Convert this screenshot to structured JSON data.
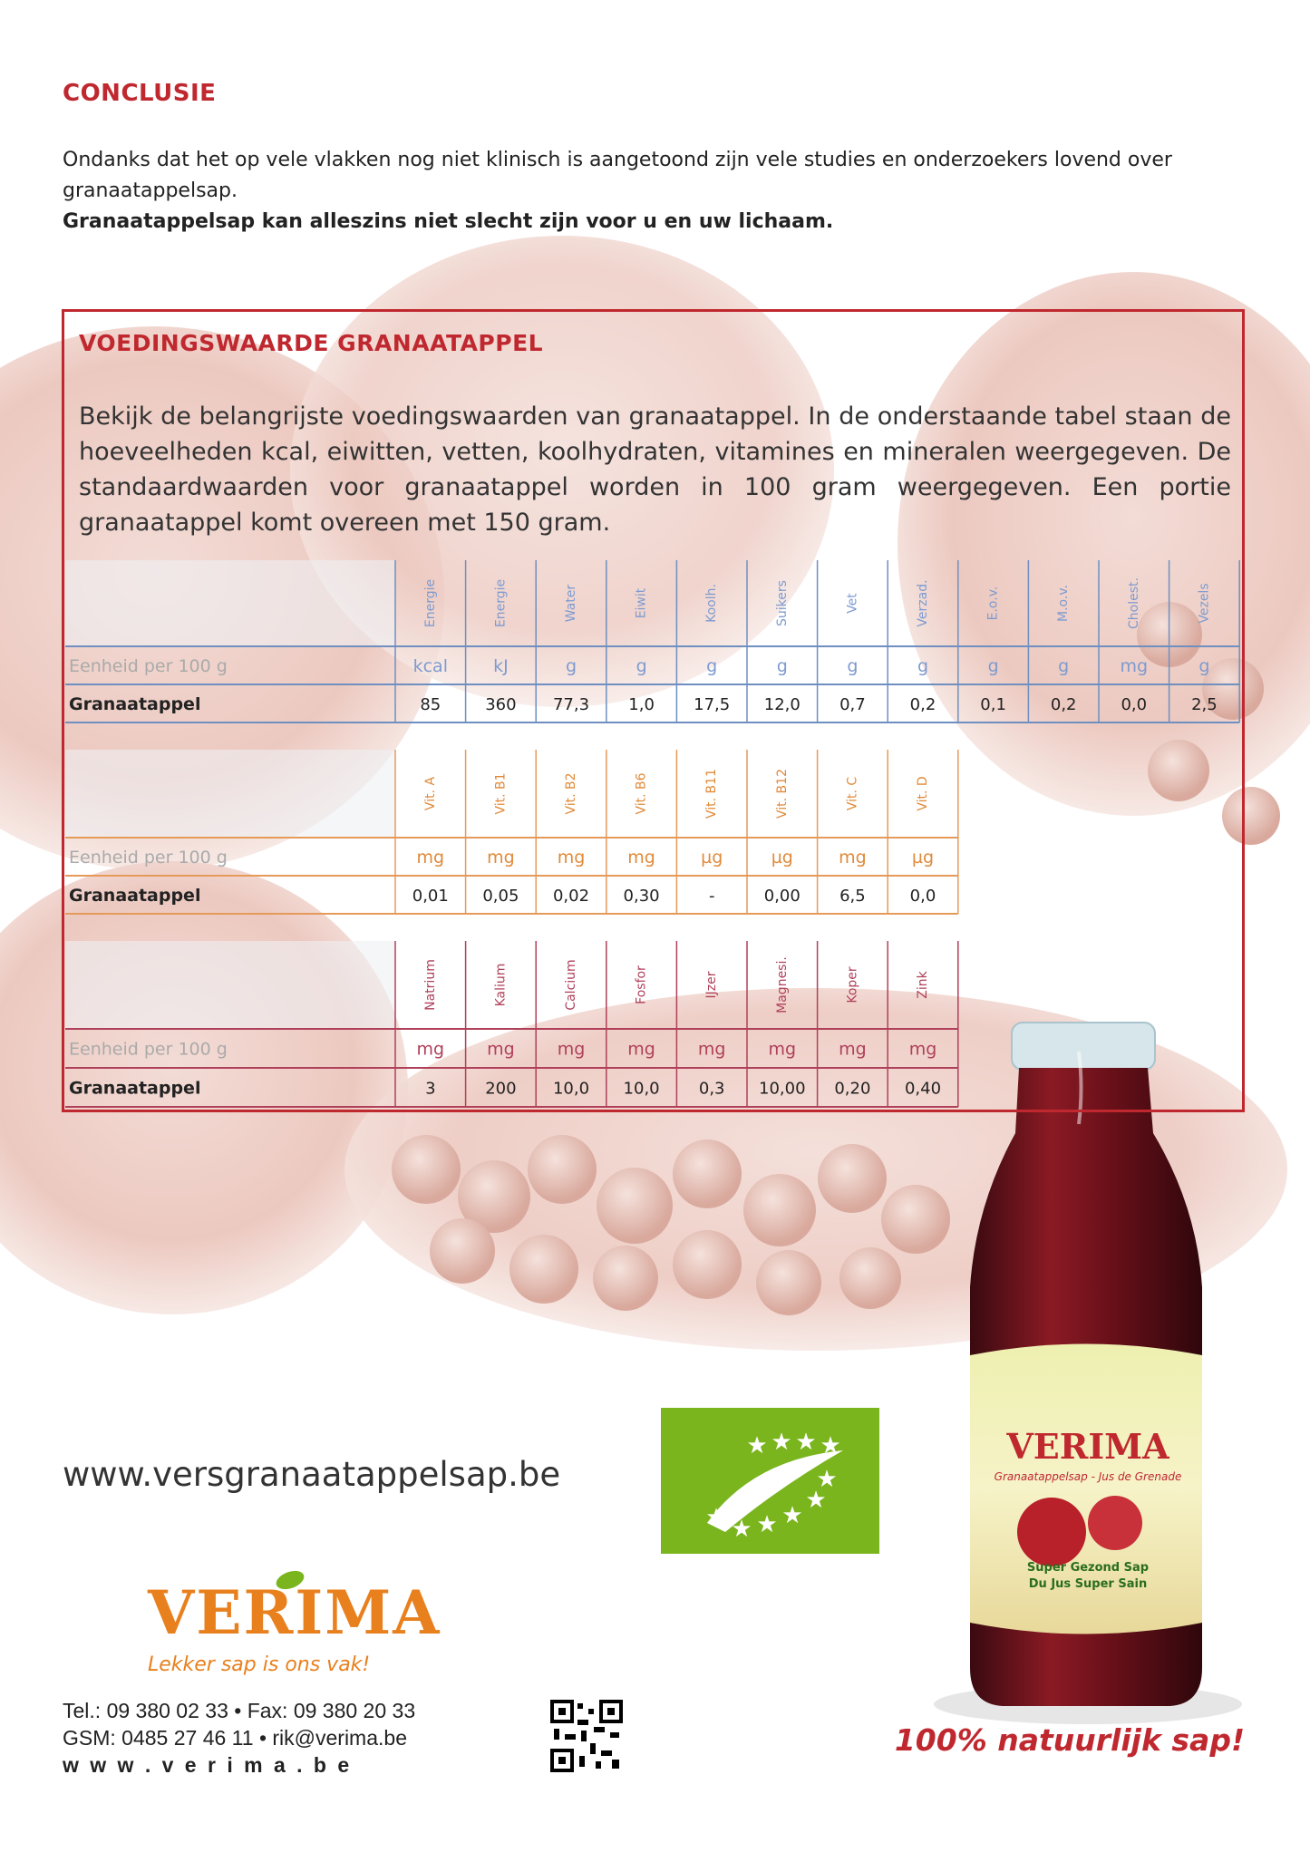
{
  "conclusion": {
    "title": "CONCLUSIE",
    "text": "Ondanks dat het op vele vlakken nog niet klinisch is aangetoond  zijn vele  studies en onderzoekers lovend over granaatappelsap.",
    "bold": "Granaatappelsap kan alleszins niet slecht zijn voor u en uw lichaam."
  },
  "nutrition": {
    "title": "VOEDINGSWAARDE GRANAATAPPEL",
    "text": "Bekijk de belangrijste voedingswaarden van granaatappel. In de onderstaande tabel staan de hoeveelheden kcal, eiwitten, vetten, koolhydraten, vitamines en mineralen weergegeven. De standaardwaarden voor granaatappel worden in 100 gram weergegeven. Een portie granaatappel komt overeen met 150 gram.",
    "tables": [
      {
        "headers": [
          "Energie",
          "Energie",
          "Water",
          "Eiwit",
          "Koolh.",
          "Suikers",
          "Vet",
          "Verzad.",
          "E.o.v.",
          "M.o.v.",
          "Cholest.",
          "Vezels"
        ],
        "unit_label": "Eenheid per 100 g",
        "units": [
          "kcal",
          "kJ",
          "g",
          "g",
          "g",
          "g",
          "g",
          "g",
          "g",
          "g",
          "mg",
          "g"
        ],
        "row_label": "Granaatappel",
        "values": [
          "85",
          "360",
          "77,3",
          "1,0",
          "17,5",
          "12,0",
          "0,7",
          "0,2",
          "0,1",
          "0,2",
          "0,0",
          "2,5"
        ]
      },
      {
        "headers": [
          "Vit. A",
          "Vit. B1",
          "Vit. B2",
          "Vit. B6",
          "Vit. B11",
          "Vit. B12",
          "Vit. C",
          "Vit. D"
        ],
        "unit_label": "Eenheid per 100 g",
        "units": [
          "mg",
          "mg",
          "mg",
          "mg",
          "µg",
          "µg",
          "mg",
          "µg"
        ],
        "row_label": "Granaatappel",
        "values": [
          "0,01",
          "0,05",
          "0,02",
          "0,30",
          "-",
          "0,00",
          "6,5",
          "0,0"
        ]
      },
      {
        "headers": [
          "Natrium",
          "Kalium",
          "Calcium",
          "Fosfor",
          "IJzer",
          "Magnesi.",
          "Koper",
          "Zink"
        ],
        "unit_label": "Eenheid per 100 g",
        "units": [
          "mg",
          "mg",
          "mg",
          "mg",
          "mg",
          "mg",
          "mg",
          "mg"
        ],
        "row_label": "Granaatappel",
        "values": [
          "3",
          "200",
          "10,0",
          "10,0",
          "0,3",
          "10,00",
          "0,20",
          "0,40"
        ]
      }
    ]
  },
  "website": "www.versgranaatappelsap.be",
  "logo": {
    "brand": "VERIMA",
    "tagline": "Lekker sap is ons vak!"
  },
  "contact": [
    "Tel.: 09 380 02 33 • Fax: 09 380 20 33",
    "GSM: 0485 27 46 11 • rik@verima.be",
    "w w w . v e r i m a . b e"
  ],
  "bottle": {
    "brand": "VERIMA",
    "name": "Granaatappelsap - Jus de Grenade",
    "line1": "Super Gezond Sap",
    "line2": "Du Jus Super Sain"
  },
  "slogan": "100% natuurlijk sap!"
}
